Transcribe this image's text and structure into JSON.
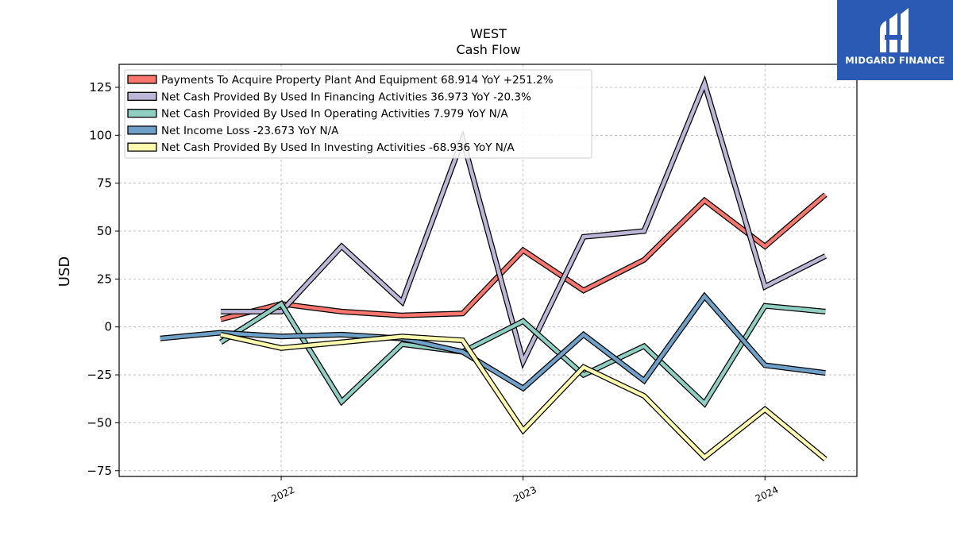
{
  "chart_data": {
    "type": "line",
    "title": "WEST",
    "subtitle": "Cash Flow",
    "xlabel": "",
    "ylabel": "USD",
    "ylim": [
      -78,
      137
    ],
    "xlim": [
      2021.33,
      2024.38
    ],
    "xticks": [
      2022,
      2023,
      2024
    ],
    "xtick_labels": [
      "2022",
      "2023",
      "2024"
    ],
    "yticks": [
      -75,
      -50,
      -25,
      0,
      25,
      50,
      75,
      100,
      125
    ],
    "ytick_labels": [
      "−75",
      "−50",
      "−25",
      "0",
      "25",
      "50",
      "75",
      "100",
      "125"
    ],
    "grid": true,
    "legend_position": "upper-left",
    "series": [
      {
        "name": "Payments To Acquire Property Plant And Equipment",
        "legend_label": "Payments To Acquire Property Plant And Equipment  68.914 YoY +251.2%",
        "color": "#f8766d",
        "x": [
          2021.75,
          2022.0,
          2022.25,
          2022.5,
          2022.75,
          2023.0,
          2023.25,
          2023.5,
          2023.75,
          2024.0,
          2024.25
        ],
        "y": [
          4,
          12,
          8,
          6,
          7,
          40,
          19,
          35,
          66,
          42,
          69
        ]
      },
      {
        "name": "Net Cash Provided By Used In Financing Activities",
        "legend_label": "Net Cash Provided By Used In Financing Activities  36.973 YoY -20.3%",
        "color": "#bdb6d6",
        "x": [
          2021.75,
          2022.0,
          2022.25,
          2022.5,
          2022.75,
          2023.0,
          2023.25,
          2023.5,
          2023.75,
          2024.0,
          2024.25
        ],
        "y": [
          8,
          8,
          42,
          13,
          98,
          -18,
          47,
          50,
          127,
          21,
          37
        ]
      },
      {
        "name": "Net Cash Provided By Used In Operating Activities",
        "legend_label": "Net Cash Provided By Used In Operating Activities  7.979 YoY N/A",
        "color": "#8ecfc2",
        "x": [
          2021.75,
          2022.0,
          2022.25,
          2022.5,
          2022.75,
          2023.0,
          2023.25,
          2023.5,
          2023.75,
          2024.0,
          2024.25
        ],
        "y": [
          -8,
          12,
          -39,
          -9,
          -13,
          3,
          -25,
          -10,
          -40,
          11,
          8
        ]
      },
      {
        "name": "Net Income Loss",
        "legend_label": "Net Income Loss  -23.673 YoY N/A",
        "color": "#6fa1c8",
        "x": [
          2021.5,
          2021.75,
          2022.0,
          2022.25,
          2022.5,
          2022.75,
          2023.0,
          2023.25,
          2023.5,
          2023.75,
          2024.0,
          2024.25
        ],
        "y": [
          -6,
          -3,
          -5,
          -4,
          -6,
          -13,
          -32,
          -4,
          -28,
          16,
          -20,
          -24
        ]
      },
      {
        "name": "Net Cash Provided By Used In Investing Activities",
        "legend_label": "Net Cash Provided By Used In Investing Activities  -68.936 YoY N/A",
        "color": "#fdfcae",
        "x": [
          2021.75,
          2022.0,
          2022.25,
          2022.5,
          2022.75,
          2023.0,
          2023.25,
          2023.5,
          2023.75,
          2024.0,
          2024.25
        ],
        "y": [
          -4,
          -11,
          -8,
          -5,
          -7,
          -54,
          -21,
          -36,
          -68,
          -43,
          -69
        ]
      }
    ]
  },
  "logo": {
    "text": "MIDGARD FINANCE"
  }
}
